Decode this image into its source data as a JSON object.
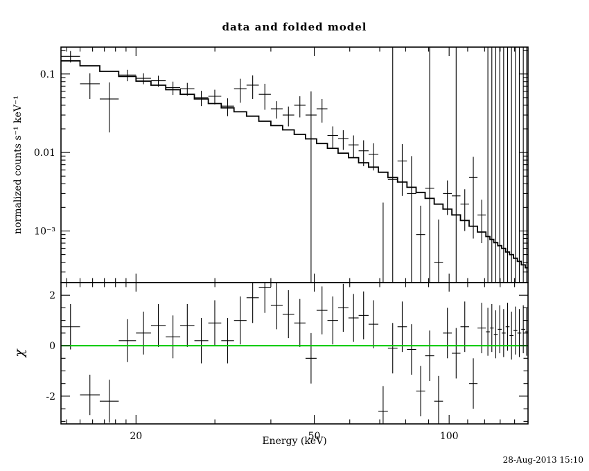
{
  "window": {
    "bg": "#ffffff",
    "fg": "#000000"
  },
  "chart_data": {
    "type": "line",
    "title": "data and folded model",
    "xlabel": "Energy (keV)",
    "timestamp": "28-Aug-2013 15:10",
    "x_scale": "log",
    "x_range": [
      13.6,
      150
    ],
    "x_major_ticks": [
      20,
      50,
      100
    ],
    "x_minor_ticks": [
      14,
      15,
      16,
      17,
      18,
      19,
      30,
      40,
      60,
      70,
      80,
      90,
      110,
      120,
      130,
      140
    ],
    "panels": [
      {
        "name": "spectrum",
        "ylabel": "normalized counts s⁻¹ keV⁻¹",
        "y_scale": "log",
        "y_range": [
          0.00022,
          0.22
        ],
        "y_major_ticks": [
          0.1,
          0.01,
          0.001
        ],
        "y_tick_labels": [
          "0.1",
          "0.01",
          "10⁻³"
        ],
        "model": {
          "color": "#000000",
          "edges": [
            13.6,
            15.0,
            16.6,
            18.3,
            20.0,
            21.6,
            23.3,
            25.1,
            27.0,
            29.0,
            31.0,
            33.1,
            35.3,
            37.6,
            40.0,
            42.5,
            45.1,
            47.8,
            50.6,
            53.5,
            56.5,
            59.6,
            62.8,
            66.1,
            69.5,
            73.0,
            76.7,
            80.5,
            84.4,
            88.4,
            92.6,
            96.9,
            101.4,
            106.0,
            110.8,
            115.7,
            120.8,
            123.3,
            125.8,
            128.4,
            131.0,
            133.7,
            136.4,
            139.2,
            142.0,
            144.9,
            147.9,
            150.0
          ],
          "values": [
            0.147,
            0.127,
            0.108,
            0.093,
            0.081,
            0.072,
            0.063,
            0.055,
            0.048,
            0.042,
            0.037,
            0.033,
            0.029,
            0.025,
            0.022,
            0.0194,
            0.017,
            0.0149,
            0.013,
            0.0113,
            0.0098,
            0.0086,
            0.0074,
            0.0065,
            0.0056,
            0.0048,
            0.0042,
            0.0036,
            0.0031,
            0.0026,
            0.0022,
            0.0019,
            0.0016,
            0.00136,
            0.00115,
            0.00097,
            0.00085,
            0.00078,
            0.00071,
            0.00065,
            0.0006,
            0.00054,
            0.0005,
            0.00045,
            0.00041,
            0.00037,
            0.00034
          ]
        },
        "points_columns": [
          "e_lo",
          "e_hi",
          "value",
          "error"
        ],
        "points": [
          [
            13.6,
            15.0,
            0.168,
            0.028
          ],
          [
            15.0,
            16.6,
            0.075,
            0.027
          ],
          [
            16.6,
            18.3,
            0.048,
            0.03
          ],
          [
            18.3,
            20.0,
            0.097,
            0.016
          ],
          [
            20.0,
            21.6,
            0.088,
            0.014
          ],
          [
            21.6,
            23.3,
            0.082,
            0.013
          ],
          [
            23.3,
            25.1,
            0.067,
            0.013
          ],
          [
            25.1,
            27.0,
            0.065,
            0.012
          ],
          [
            27.0,
            29.0,
            0.05,
            0.011
          ],
          [
            29.0,
            31.0,
            0.052,
            0.011
          ],
          [
            31.0,
            33.1,
            0.039,
            0.01
          ],
          [
            33.1,
            35.3,
            0.065,
            0.022
          ],
          [
            35.3,
            37.6,
            0.072,
            0.024
          ],
          [
            37.6,
            40.0,
            0.055,
            0.02
          ],
          [
            40.0,
            42.5,
            0.036,
            0.009
          ],
          [
            42.5,
            45.1,
            0.03,
            0.0085
          ],
          [
            45.1,
            47.8,
            0.04,
            0.012
          ],
          [
            47.8,
            50.6,
            0.03,
            0.0299
          ],
          [
            50.6,
            53.5,
            0.036,
            0.012
          ],
          [
            53.5,
            56.5,
            0.0165,
            0.005
          ],
          [
            56.5,
            59.6,
            0.015,
            0.0042
          ],
          [
            59.6,
            62.8,
            0.0125,
            0.004
          ],
          [
            62.8,
            66.1,
            0.0105,
            0.0038
          ],
          [
            66.1,
            69.5,
            0.0095,
            0.0036
          ],
          [
            69.5,
            73.0,
            0.0002,
            0.0021
          ],
          [
            73.0,
            76.7,
            0.0045,
            0.3
          ],
          [
            76.7,
            80.5,
            0.0078,
            0.005
          ],
          [
            80.5,
            84.4,
            0.003,
            0.006
          ],
          [
            84.4,
            88.4,
            0.0009,
            0.0012
          ],
          [
            88.4,
            92.6,
            0.0035,
            0.3
          ],
          [
            92.6,
            96.9,
            0.0004,
            0.001
          ],
          [
            96.9,
            101.4,
            0.003,
            0.0014
          ],
          [
            101.4,
            106.0,
            0.0028,
            0.3
          ],
          [
            106.0,
            110.8,
            0.0022,
            0.0012
          ],
          [
            110.8,
            115.7,
            0.0048,
            0.004
          ],
          [
            115.7,
            120.8,
            0.0016,
            0.0009
          ],
          [
            120.8,
            123.3,
            0.00085,
            0.3
          ],
          [
            123.3,
            125.8,
            0.00078,
            0.3
          ],
          [
            125.8,
            128.4,
            0.00071,
            0.3
          ],
          [
            128.4,
            131.0,
            0.00065,
            0.3
          ],
          [
            131.0,
            133.7,
            0.0006,
            0.3
          ],
          [
            133.7,
            136.4,
            0.00054,
            0.3
          ],
          [
            136.4,
            139.2,
            0.0005,
            0.3
          ],
          [
            139.2,
            142.0,
            0.00045,
            0.3
          ],
          [
            142.0,
            144.9,
            0.00041,
            0.3
          ],
          [
            144.9,
            147.9,
            0.00037,
            0.3
          ],
          [
            147.9,
            150.0,
            0.00034,
            0.3
          ]
        ]
      },
      {
        "name": "residuals",
        "ylabel": "χ",
        "y_scale": "linear",
        "y_range": [
          -3.1,
          2.5
        ],
        "y_major_ticks": [
          -2,
          0,
          2
        ],
        "y_minor_step": 0.5,
        "zero_line": {
          "y": 0,
          "color": "#00c800"
        },
        "points_columns": [
          "e_lo",
          "e_hi",
          "chi",
          "error"
        ],
        "points": [
          [
            13.6,
            15.0,
            0.75,
            0.9
          ],
          [
            15.0,
            16.6,
            -1.95,
            0.8
          ],
          [
            16.6,
            18.3,
            -2.2,
            0.85
          ],
          [
            18.3,
            20.0,
            0.2,
            0.85
          ],
          [
            20.0,
            21.6,
            0.5,
            0.85
          ],
          [
            21.6,
            23.3,
            0.8,
            0.85
          ],
          [
            23.3,
            25.1,
            0.35,
            0.85
          ],
          [
            25.1,
            27.0,
            0.8,
            0.85
          ],
          [
            27.0,
            29.0,
            0.2,
            0.9
          ],
          [
            29.0,
            31.0,
            0.9,
            0.9
          ],
          [
            31.0,
            33.1,
            0.2,
            0.9
          ],
          [
            33.1,
            35.3,
            1.0,
            0.95
          ],
          [
            35.3,
            37.6,
            1.9,
            1.0
          ],
          [
            37.6,
            40.0,
            2.3,
            1.0
          ],
          [
            40.0,
            42.5,
            1.6,
            0.95
          ],
          [
            42.5,
            45.1,
            1.25,
            0.95
          ],
          [
            45.1,
            47.8,
            0.9,
            0.95
          ],
          [
            47.8,
            50.6,
            -0.5,
            1.0
          ],
          [
            50.6,
            53.5,
            1.4,
            0.95
          ],
          [
            53.5,
            56.5,
            1.0,
            0.95
          ],
          [
            56.5,
            59.6,
            1.5,
            0.95
          ],
          [
            59.6,
            62.8,
            1.1,
            0.95
          ],
          [
            62.8,
            66.1,
            1.2,
            0.95
          ],
          [
            66.1,
            69.5,
            0.85,
            0.95
          ],
          [
            69.5,
            73.0,
            -2.6,
            1.0
          ],
          [
            73.0,
            76.7,
            -0.1,
            1.0
          ],
          [
            76.7,
            80.5,
            0.75,
            1.0
          ],
          [
            80.5,
            84.4,
            -0.15,
            1.0
          ],
          [
            84.4,
            88.4,
            -1.8,
            1.0
          ],
          [
            88.4,
            92.6,
            -0.4,
            1.0
          ],
          [
            92.6,
            96.9,
            -2.2,
            1.0
          ],
          [
            96.9,
            101.4,
            0.5,
            1.0
          ],
          [
            101.4,
            106.0,
            -0.3,
            1.0
          ],
          [
            106.0,
            110.8,
            0.75,
            1.0
          ],
          [
            110.8,
            115.7,
            -1.5,
            1.0
          ],
          [
            115.7,
            120.8,
            0.7,
            1.0
          ],
          [
            120.8,
            123.3,
            0.55,
            0.95
          ],
          [
            123.3,
            125.8,
            0.7,
            0.95
          ],
          [
            125.8,
            128.4,
            0.45,
            0.95
          ],
          [
            128.4,
            131.0,
            0.65,
            0.95
          ],
          [
            131.0,
            133.7,
            0.5,
            0.95
          ],
          [
            133.7,
            136.4,
            0.75,
            0.95
          ],
          [
            136.4,
            139.2,
            0.4,
            0.95
          ],
          [
            139.2,
            142.0,
            0.6,
            0.95
          ],
          [
            142.0,
            144.9,
            0.5,
            0.95
          ],
          [
            144.9,
            147.9,
            0.65,
            0.95
          ],
          [
            147.9,
            150.0,
            0.55,
            0.95
          ]
        ]
      }
    ]
  }
}
